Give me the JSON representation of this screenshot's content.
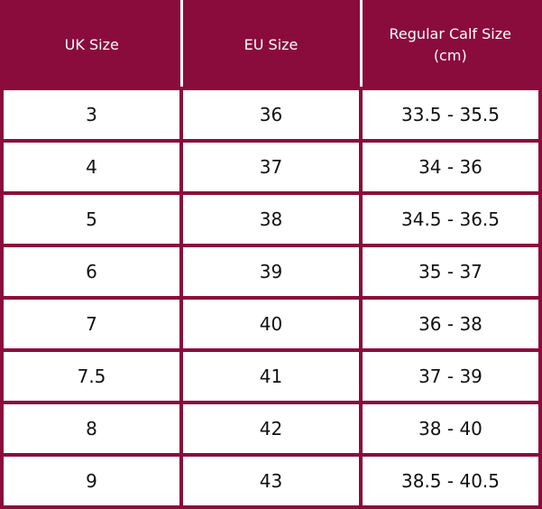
{
  "table": {
    "header": [
      "UK Size",
      "EU Size",
      "Regular Calf Size (cm)"
    ],
    "rows": [
      [
        "3",
        "36",
        "33.5 - 35.5"
      ],
      [
        "4",
        "37",
        "34 - 36"
      ],
      [
        "5",
        "38",
        "34.5 - 36.5"
      ],
      [
        "6",
        "39",
        "35 - 37"
      ],
      [
        "7",
        "40",
        "36 - 38"
      ],
      [
        "7.5",
        "41",
        "37 - 39"
      ],
      [
        "8",
        "42",
        "38 - 40"
      ],
      [
        "9",
        "43",
        "38.5 - 40.5"
      ]
    ]
  }
}
